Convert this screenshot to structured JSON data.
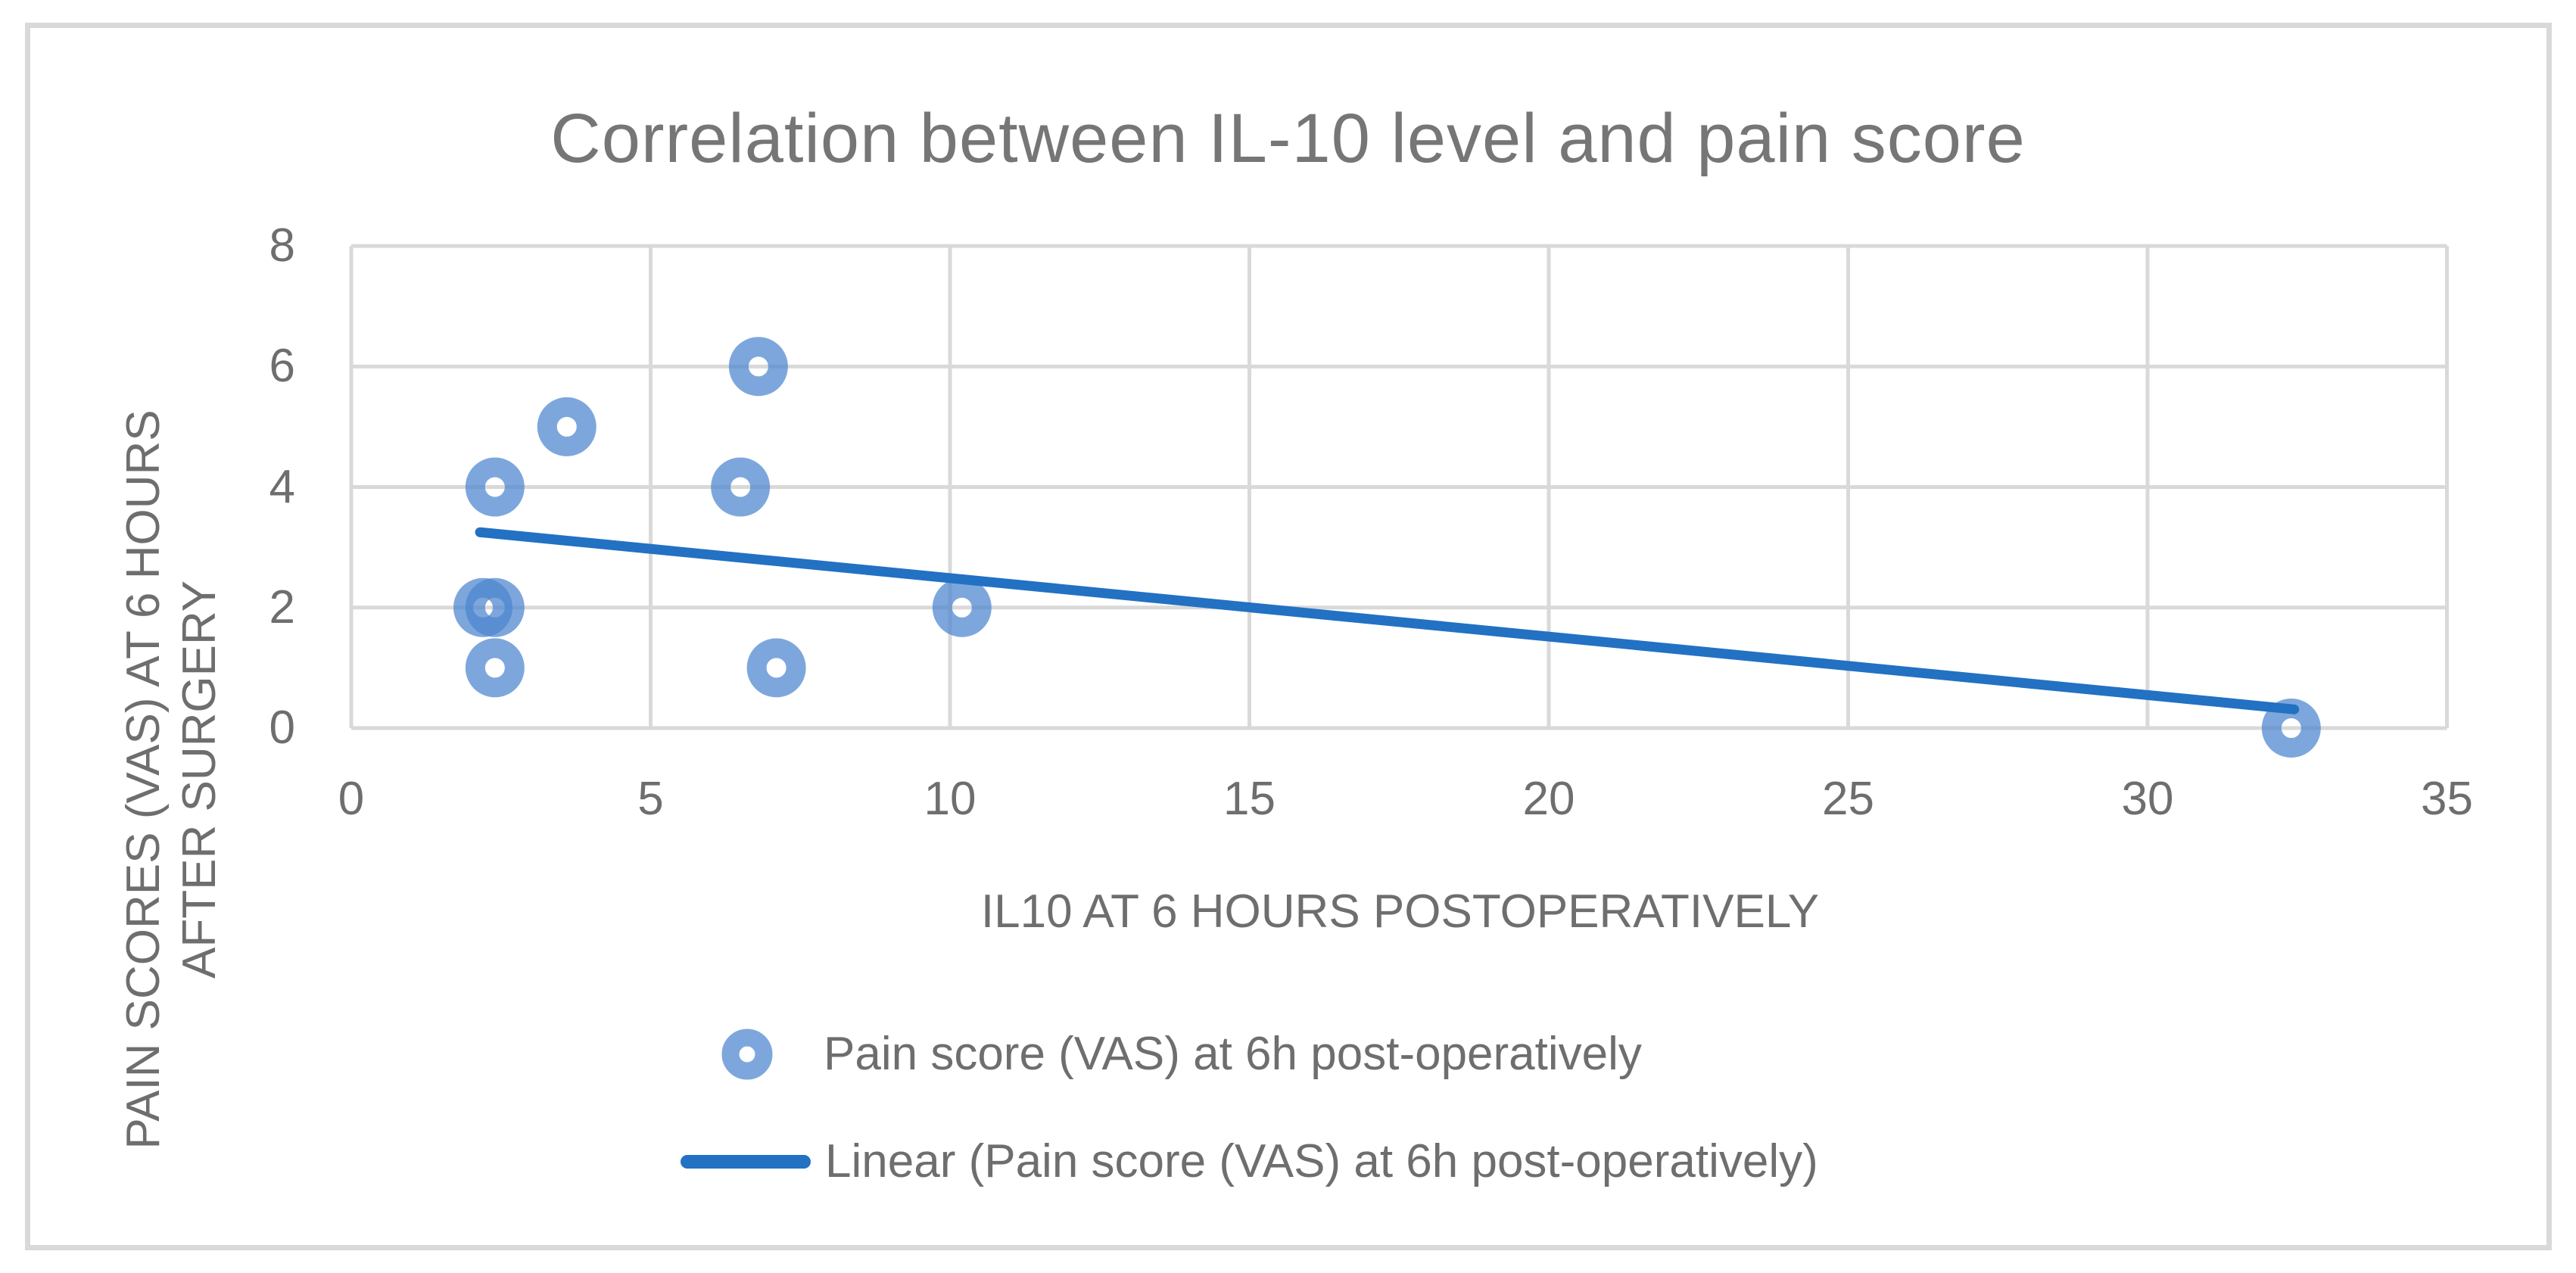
{
  "chart_data": {
    "type": "scatter",
    "title": "Correlation between IL-10 level and pain score",
    "xlabel": "IL10 AT 6 HOURS POSTOPERATIVELY",
    "ylabel_lines": [
      "PAIN SCORES (VAS) AT 6 HOURS",
      "AFTER SURGERY"
    ],
    "xlim": [
      0,
      35
    ],
    "ylim": [
      0,
      8
    ],
    "xticks": [
      0,
      5,
      10,
      15,
      20,
      25,
      30,
      35
    ],
    "yticks": [
      0,
      2,
      4,
      6,
      8
    ],
    "grid": "on",
    "legend_position": "bottom",
    "series": [
      {
        "name": "Pain score (VAS) at 6h post-operatively",
        "type": "scatter",
        "marker": "donut",
        "points": [
          [
            2.2,
            2
          ],
          [
            2.4,
            1
          ],
          [
            2.4,
            2
          ],
          [
            2.4,
            4
          ],
          [
            3.6,
            5
          ],
          [
            6.5,
            4
          ],
          [
            6.8,
            6
          ],
          [
            7.1,
            1
          ],
          [
            10.2,
            2
          ],
          [
            32.4,
            0
          ]
        ]
      },
      {
        "name": "Linear (Pain score (VAS) at 6h post-operatively)",
        "type": "trendline",
        "from": [
          2.15,
          3.25
        ],
        "to": [
          32.45,
          0.31
        ]
      }
    ],
    "colors": {
      "marker": "#4B85CF",
      "marker_opacity": 0.72,
      "trendline": "#2271C3",
      "gridline": "#D9D9D9",
      "frame": "#D9D9D9",
      "text": "#6E6E6E",
      "title": "#767676",
      "background": "#FFFFFF"
    }
  }
}
